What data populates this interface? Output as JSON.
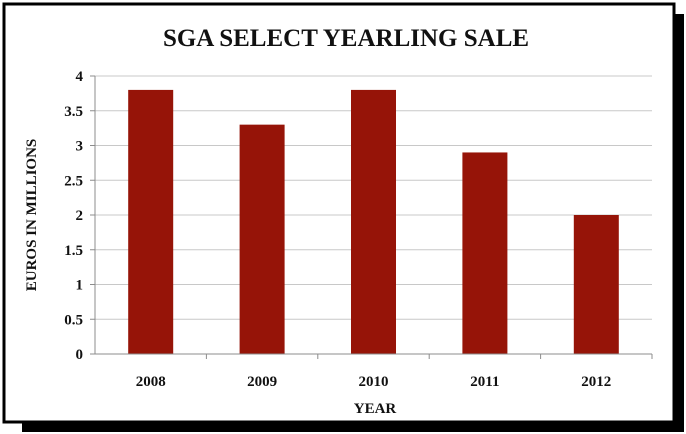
{
  "chart_data": {
    "type": "bar",
    "title": "SGA SELECT YEARLING SALE",
    "xlabel": "YEAR",
    "ylabel": "EUROS IN MILLIONS",
    "categories": [
      "2008",
      "2009",
      "2010",
      "2011",
      "2012"
    ],
    "values": [
      3.8,
      3.3,
      3.8,
      2.9,
      2.0
    ],
    "ylim": [
      0,
      4
    ],
    "yticks": [
      "0",
      "0.5",
      "1",
      "1.5",
      "2",
      "2.5",
      "3",
      "3.5",
      "4"
    ],
    "ytick_values": [
      0,
      0.5,
      1,
      1.5,
      2,
      2.5,
      3,
      3.5,
      4
    ],
    "grid": true,
    "legend": "none",
    "colors": {
      "bar": "#961408",
      "grid": "#c8c8c8",
      "frame": "#000000",
      "background": "#ffffff"
    }
  }
}
